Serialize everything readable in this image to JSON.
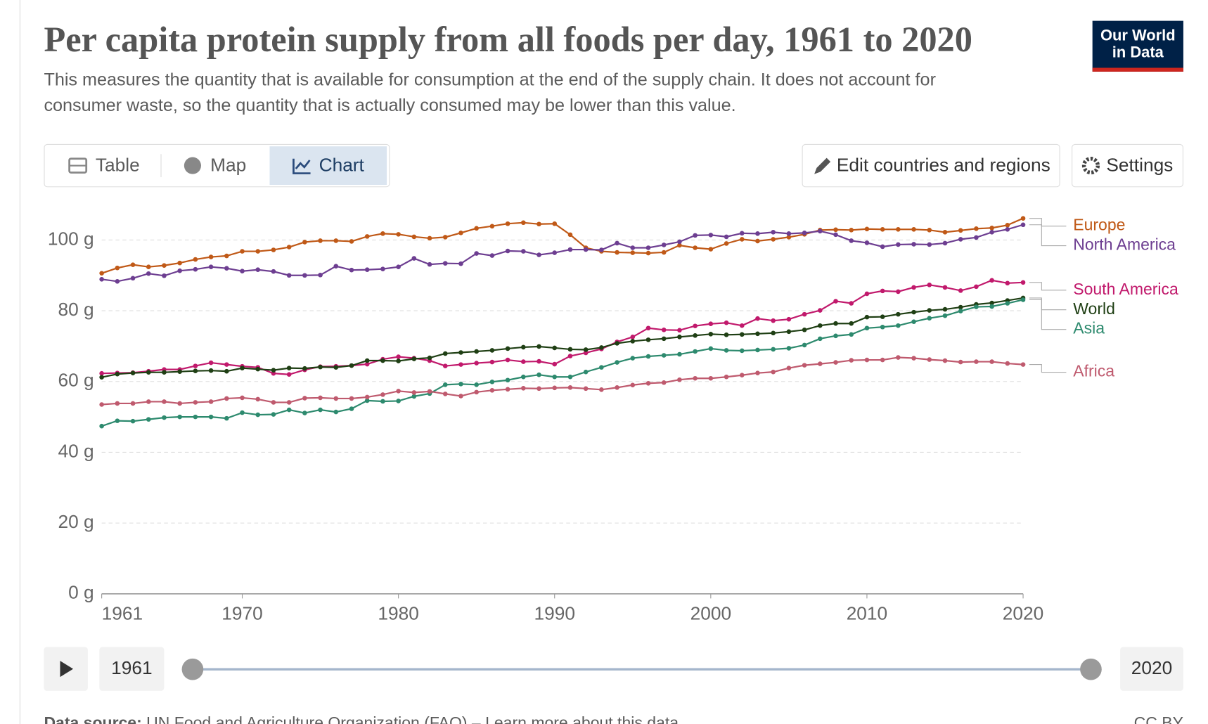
{
  "header": {
    "title": "Per capita protein supply from all foods per day, 1961 to 2020",
    "subtitle_lines": [
      "This measures the quantity that is available for consumption at the end of the supply chain. It does not account for",
      "consumer waste, so the quantity that is actually consumed may be lower than this value."
    ],
    "logo": [
      "Our World",
      "in Data"
    ]
  },
  "controls": {
    "tabs": [
      "Table",
      "Map",
      "Chart"
    ],
    "edit": "Edit countries and regions",
    "settings": "Settings"
  },
  "timeline": {
    "start": "1961",
    "end": "2020"
  },
  "footer": {
    "source_label": "Data source:",
    "source": "UN Food and Agriculture Organization (FAO) – Learn more about this data",
    "license": "CC BY"
  },
  "chart_data": {
    "type": "line",
    "x": [
      1961,
      1962,
      1963,
      1964,
      1965,
      1966,
      1967,
      1968,
      1969,
      1970,
      1971,
      1972,
      1973,
      1974,
      1975,
      1976,
      1977,
      1978,
      1979,
      1980,
      1981,
      1982,
      1983,
      1984,
      1985,
      1986,
      1987,
      1988,
      1989,
      1990,
      1991,
      1992,
      1993,
      1994,
      1995,
      1996,
      1997,
      1998,
      1999,
      2000,
      2001,
      2002,
      2003,
      2004,
      2005,
      2006,
      2007,
      2008,
      2009,
      2010,
      2011,
      2012,
      2013,
      2014,
      2015,
      2016,
      2017,
      2018,
      2019,
      2020
    ],
    "xlim": [
      1961,
      2020
    ],
    "xticks": [
      1961,
      1970,
      1980,
      1990,
      2000,
      2010,
      2020
    ],
    "ylim": [
      0,
      106
    ],
    "yticks": [
      {
        "value": 0,
        "label": "0 g"
      },
      {
        "value": 20,
        "label": "20 g"
      },
      {
        "value": 40,
        "label": "40 g"
      },
      {
        "value": 60,
        "label": "60 g"
      },
      {
        "value": 80,
        "label": "80 g"
      },
      {
        "value": 100,
        "label": "100 g"
      }
    ],
    "grid": true,
    "series": [
      {
        "name": "Europe",
        "color": "#c05917",
        "values": [
          90.6,
          92.1,
          93,
          92.4,
          92.8,
          93.5,
          94.5,
          95.2,
          95.5,
          96.8,
          96.8,
          97.2,
          98,
          99.4,
          99.8,
          99.8,
          99.6,
          101,
          101.8,
          101.6,
          100.9,
          100.5,
          100.8,
          102,
          103.3,
          103.9,
          104.6,
          104.9,
          104.5,
          104.6,
          101.5,
          97.8,
          96.8,
          96.5,
          96.4,
          96.3,
          96.5,
          98.5,
          97.8,
          97.4,
          99,
          100.2,
          99.7,
          100.2,
          100.8,
          101.6,
          102.8,
          102.9,
          102.8,
          103.1,
          103,
          103,
          103,
          102.8,
          102.2,
          102.7,
          103.2,
          103.4,
          104.2,
          106.1
        ]
      },
      {
        "name": "North America",
        "color": "#6d3e91",
        "values": [
          88.9,
          88.3,
          89.2,
          90.5,
          89.9,
          91.3,
          91.7,
          92.4,
          92,
          91.2,
          91.6,
          91.1,
          90,
          90,
          90.1,
          92.6,
          91.5,
          91.6,
          91.8,
          92.4,
          94.8,
          93.1,
          93.4,
          93.3,
          96.2,
          95.6,
          96.9,
          96.8,
          95.8,
          96.4,
          97.3,
          97.3,
          97.2,
          99.1,
          97.8,
          97.8,
          98.6,
          99.5,
          101.3,
          101.4,
          100.9,
          101.9,
          101.8,
          102.2,
          101.8,
          102,
          102.5,
          101.5,
          99.8,
          99.2,
          98.1,
          98.7,
          98.8,
          98.7,
          99.1,
          100.2,
          100.7,
          102.2,
          103,
          104.3
        ]
      },
      {
        "name": "South America",
        "color": "#c1196c",
        "values": [
          62.3,
          62.4,
          62.5,
          62.9,
          63.4,
          63.4,
          64.4,
          65.3,
          64.8,
          64.3,
          64,
          62.3,
          62,
          63.3,
          64.2,
          64.3,
          64.5,
          64.9,
          66.3,
          67,
          66.6,
          65.9,
          64.4,
          64.8,
          65.2,
          65.5,
          66.1,
          65.6,
          65.7,
          64.9,
          67.2,
          68.1,
          69.2,
          71.2,
          72.6,
          75.1,
          74.6,
          74.5,
          75.7,
          76.3,
          76.6,
          75.8,
          77.8,
          77.2,
          77.6,
          79,
          80.1,
          82.7,
          82.1,
          84.8,
          85.6,
          85.4,
          86.6,
          87.3,
          86.6,
          85.7,
          86.8,
          88.6,
          87.8,
          88
        ]
      },
      {
        "name": "World",
        "color": "#1f3f14",
        "values": [
          61.2,
          62.1,
          62.4,
          62.6,
          62.6,
          62.8,
          63,
          63.1,
          62.9,
          63.8,
          63.5,
          63.2,
          63.8,
          63.7,
          64.1,
          64,
          64.5,
          65.9,
          65.9,
          65.8,
          66.4,
          66.7,
          67.9,
          68.2,
          68.5,
          68.8,
          69.3,
          69.7,
          69.9,
          69.5,
          69.1,
          69,
          69.6,
          70.8,
          71.4,
          71.8,
          72.1,
          72.6,
          73,
          73.4,
          73.2,
          73.3,
          73.5,
          73.7,
          74.1,
          74.6,
          75.8,
          76.4,
          76.4,
          78.2,
          78.3,
          79,
          79.6,
          80.1,
          80.4,
          81,
          81.8,
          82.2,
          82.9,
          83.6
        ]
      },
      {
        "name": "Asia",
        "color": "#2d8a6e",
        "values": [
          47.4,
          48.9,
          48.8,
          49.3,
          49.8,
          50,
          50,
          50,
          49.6,
          51.2,
          50.6,
          50.7,
          52,
          51.1,
          52,
          51.4,
          52.3,
          54.6,
          54.4,
          54.5,
          55.8,
          56.6,
          59.1,
          59.3,
          59.1,
          59.9,
          60.4,
          61.3,
          61.9,
          61.3,
          61.3,
          62.7,
          64,
          65.4,
          66.6,
          67.1,
          67.4,
          67.7,
          68.5,
          69.3,
          68.8,
          68.7,
          68.9,
          69.1,
          69.4,
          70.3,
          72.1,
          72.9,
          73.3,
          75.1,
          75.4,
          75.8,
          76.9,
          77.9,
          78.6,
          79.9,
          81.1,
          81.2,
          82.1,
          83.1
        ]
      },
      {
        "name": "Africa",
        "color": "#bf5a6e",
        "values": [
          53.5,
          53.8,
          53.8,
          54.3,
          54.3,
          53.8,
          54.1,
          54.3,
          55.2,
          55.4,
          55,
          54.1,
          54.1,
          55.3,
          55.4,
          55.2,
          55.2,
          55.6,
          56.3,
          57.3,
          56.9,
          57.2,
          56.5,
          55.9,
          57,
          57.5,
          57.8,
          58.1,
          58,
          58.2,
          58.3,
          58,
          57.7,
          58.3,
          59,
          59.5,
          59.7,
          60.5,
          60.9,
          60.9,
          61.3,
          61.8,
          62.4,
          62.7,
          63.8,
          64.6,
          65,
          65.4,
          66,
          66.1,
          66.1,
          66.8,
          66.6,
          66.2,
          65.9,
          65.5,
          65.6,
          65.6,
          65.1,
          64.8
        ]
      }
    ]
  }
}
